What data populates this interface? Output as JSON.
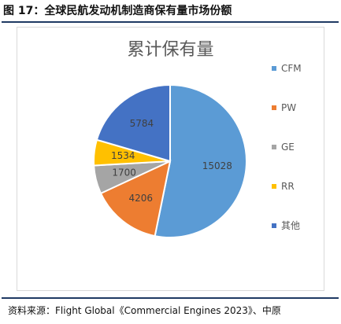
{
  "figure": {
    "title": "图 17：全球民航发动机制造商保有量市场份额",
    "source": "资料来源：Flight Global《Commercial Engines 2023》、中原"
  },
  "chart_data": {
    "type": "pie",
    "title": "累计保有量",
    "categories": [
      "CFM",
      "PW",
      "GE",
      "RR",
      "其他"
    ],
    "values": [
      15028,
      4206,
      1700,
      1534,
      5784
    ],
    "colors": [
      "#5b9bd5",
      "#ed7d31",
      "#a5a5a5",
      "#ffc000",
      "#4472c4"
    ],
    "legend_position": "right"
  }
}
